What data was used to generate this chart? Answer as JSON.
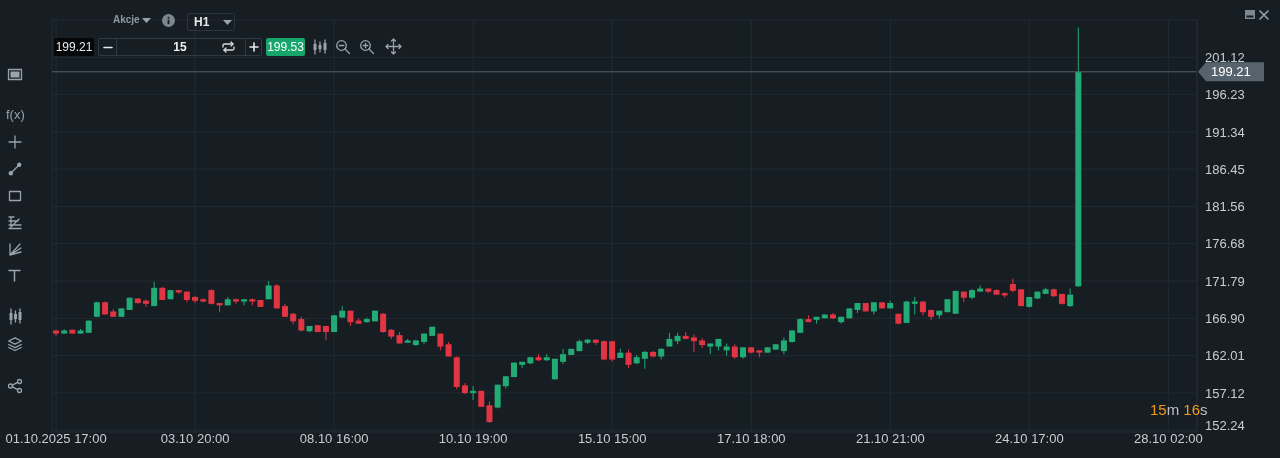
{
  "chart_data": {
    "type": "candlestick",
    "categories": [
      "01.10.2025 17:00",
      null,
      null,
      null,
      null,
      null,
      null,
      null,
      null,
      null,
      null,
      null,
      null,
      null,
      null,
      null,
      null,
      "03.10 20:00",
      null,
      null,
      null,
      null,
      null,
      null,
      null,
      null,
      null,
      null,
      null,
      null,
      null,
      null,
      null,
      null,
      "08.10 16:00",
      null,
      null,
      null,
      null,
      null,
      null,
      null,
      null,
      null,
      null,
      null,
      null,
      null,
      null,
      null,
      null,
      "10.10 19:00",
      null,
      null,
      null,
      null,
      null,
      null,
      null,
      null,
      null,
      null,
      null,
      null,
      null,
      null,
      null,
      null,
      "15.10 15:00",
      null,
      null,
      null,
      null,
      null,
      null,
      null,
      null,
      null,
      null,
      null,
      null,
      null,
      null,
      null,
      null,
      "17.10 18:00",
      null,
      null,
      null,
      null,
      null,
      null,
      null,
      null,
      null,
      null,
      null,
      null,
      null,
      null,
      null,
      null,
      "21.10 21:00",
      null,
      null,
      null,
      null,
      null,
      null,
      null,
      null,
      null,
      null,
      null,
      null,
      null,
      null,
      null,
      null,
      "24.10 17:00",
      null,
      null,
      null,
      null,
      null,
      null,
      null,
      null,
      null,
      null,
      null,
      null,
      null,
      null,
      null,
      null,
      "28.10 02:00",
      null,
      null,
      null
    ],
    "ohlc": [
      [
        165.3,
        165.4,
        164.6,
        164.9
      ],
      [
        164.9,
        165.5,
        164.9,
        165.3
      ],
      [
        165.4,
        165.4,
        164.9,
        164.9
      ],
      [
        164.9,
        165.5,
        164.9,
        165.3
      ],
      [
        165.0,
        166.6,
        165.0,
        166.6
      ],
      [
        167.1,
        169.1,
        167.1,
        169.0
      ],
      [
        169.0,
        169.1,
        167.4,
        167.4
      ],
      [
        167.8,
        168.1,
        167.1,
        167.1
      ],
      [
        167.1,
        168.2,
        167.1,
        168.2
      ],
      [
        168.0,
        169.6,
        168.0,
        169.6
      ],
      [
        169.5,
        169.5,
        168.8,
        168.9
      ],
      [
        169.2,
        169.4,
        168.4,
        168.8
      ],
      [
        168.5,
        171.7,
        168.5,
        170.9
      ],
      [
        170.9,
        171.0,
        169.3,
        169.3
      ],
      [
        169.4,
        170.6,
        169.4,
        170.6
      ],
      [
        170.6,
        170.6,
        170.1,
        170.3
      ],
      [
        170.4,
        170.4,
        169.0,
        169.3
      ],
      [
        169.7,
        169.8,
        168.9,
        169.2
      ],
      [
        169.4,
        169.5,
        169.0,
        169.1
      ],
      [
        170.6,
        170.7,
        168.7,
        168.8
      ],
      [
        168.9,
        168.9,
        167.7,
        168.6
      ],
      [
        168.6,
        169.7,
        168.6,
        169.4
      ],
      [
        169.4,
        169.5,
        168.8,
        169.1
      ],
      [
        169.1,
        169.4,
        168.6,
        169.4
      ],
      [
        169.4,
        169.5,
        168.6,
        169.1
      ],
      [
        169.3,
        169.3,
        168.4,
        168.4
      ],
      [
        169.4,
        171.8,
        169.4,
        171.2
      ],
      [
        171.2,
        171.4,
        168.2,
        168.2
      ],
      [
        168.5,
        168.8,
        167.1,
        167.1
      ],
      [
        167.5,
        167.6,
        166.1,
        166.5
      ],
      [
        166.8,
        167.1,
        165.2,
        165.3
      ],
      [
        165.2,
        165.9,
        165.1,
        165.9
      ],
      [
        166.0,
        166.0,
        165.1,
        165.1
      ],
      [
        165.9,
        165.9,
        164.0,
        165.1
      ],
      [
        165.1,
        167.3,
        165.1,
        167.3
      ],
      [
        167.0,
        168.5,
        167.0,
        167.9
      ],
      [
        167.9,
        167.9,
        165.9,
        166.4
      ],
      [
        166.6,
        166.9,
        166.2,
        166.2
      ],
      [
        166.4,
        167.0,
        166.3,
        166.8
      ],
      [
        166.5,
        167.9,
        166.5,
        167.9
      ],
      [
        167.5,
        167.6,
        165.0,
        165.1
      ],
      [
        165.4,
        165.5,
        164.2,
        164.5
      ],
      [
        164.7,
        165.1,
        163.6,
        163.6
      ],
      [
        163.7,
        164.2,
        163.7,
        164.0
      ],
      [
        163.4,
        164.1,
        163.3,
        164.0
      ],
      [
        163.8,
        164.9,
        163.5,
        164.9
      ],
      [
        164.6,
        165.8,
        164.6,
        165.8
      ],
      [
        164.9,
        164.9,
        162.7,
        163.2
      ],
      [
        163.5,
        163.8,
        161.9,
        161.9
      ],
      [
        161.8,
        161.9,
        157.6,
        157.9
      ],
      [
        158.1,
        158.4,
        157.0,
        157.1
      ],
      [
        157.1,
        158.0,
        156.2,
        157.4
      ],
      [
        157.4,
        157.4,
        155.3,
        155.3
      ],
      [
        155.5,
        156.0,
        153.2,
        153.3
      ],
      [
        155.2,
        158.2,
        155.1,
        158.2
      ],
      [
        158.0,
        159.3,
        157.7,
        159.3
      ],
      [
        159.2,
        161.1,
        159.2,
        161.1
      ],
      [
        160.8,
        161.2,
        160.4,
        161.2
      ],
      [
        161.0,
        161.8,
        160.9,
        161.8
      ],
      [
        161.8,
        162.2,
        161.3,
        161.4
      ],
      [
        161.4,
        162.2,
        161.3,
        161.8
      ],
      [
        158.9,
        161.6,
        158.9,
        161.6
      ],
      [
        161.2,
        162.9,
        160.9,
        162.2
      ],
      [
        162.1,
        162.9,
        162.1,
        162.9
      ],
      [
        162.6,
        164.1,
        162.6,
        163.9
      ],
      [
        163.7,
        164.2,
        163.5,
        164.1
      ],
      [
        164.1,
        164.1,
        163.4,
        163.7
      ],
      [
        163.9,
        164.0,
        161.4,
        161.5
      ],
      [
        163.9,
        163.9,
        161.2,
        161.5
      ],
      [
        161.7,
        162.9,
        161.7,
        162.4
      ],
      [
        162.4,
        162.8,
        160.4,
        160.8
      ],
      [
        161.0,
        162.1,
        160.9,
        161.8
      ],
      [
        161.6,
        162.6,
        160.3,
        162.5
      ],
      [
        162.5,
        162.6,
        161.8,
        161.9
      ],
      [
        161.9,
        163.0,
        161.5,
        162.9
      ],
      [
        163.2,
        165.0,
        163.2,
        164.2
      ],
      [
        163.9,
        165.0,
        163.5,
        164.6
      ],
      [
        164.6,
        165.1,
        164.1,
        164.2
      ],
      [
        164.4,
        164.8,
        162.5,
        163.9
      ],
      [
        164.0,
        164.3,
        163.0,
        163.4
      ],
      [
        163.2,
        163.6,
        162.2,
        163.6
      ],
      [
        163.2,
        164.2,
        162.7,
        164.2
      ],
      [
        162.7,
        163.6,
        162.0,
        163.2
      ],
      [
        163.2,
        163.5,
        161.6,
        161.8
      ],
      [
        161.8,
        163.1,
        161.6,
        163.1
      ],
      [
        163.1,
        163.1,
        162.3,
        162.4
      ],
      [
        162.7,
        162.7,
        161.8,
        162.4
      ],
      [
        162.4,
        163.1,
        162.4,
        163.1
      ],
      [
        162.8,
        163.5,
        162.8,
        163.5
      ],
      [
        162.6,
        164.4,
        162.2,
        164.0
      ],
      [
        163.8,
        165.4,
        163.7,
        165.3
      ],
      [
        165.0,
        166.9,
        165.0,
        166.8
      ],
      [
        166.8,
        167.3,
        166.4,
        166.4
      ],
      [
        166.7,
        167.1,
        166.2,
        167.1
      ],
      [
        166.9,
        167.4,
        166.9,
        167.4
      ],
      [
        167.4,
        167.6,
        166.8,
        166.9
      ],
      [
        166.4,
        167.1,
        166.2,
        167.1
      ],
      [
        166.9,
        168.2,
        166.9,
        168.2
      ],
      [
        168.0,
        168.9,
        167.6,
        168.9
      ],
      [
        168.9,
        168.9,
        167.8,
        167.8
      ],
      [
        167.8,
        169.0,
        167.4,
        169.0
      ],
      [
        169.0,
        169.0,
        168.2,
        168.2
      ],
      [
        168.2,
        169.2,
        168.2,
        168.9
      ],
      [
        167.5,
        167.5,
        166.1,
        166.2
      ],
      [
        166.3,
        169.2,
        166.3,
        169.1
      ],
      [
        168.8,
        169.7,
        167.4,
        169.1
      ],
      [
        169.1,
        169.1,
        167.3,
        167.7
      ],
      [
        168.0,
        168.0,
        166.7,
        167.1
      ],
      [
        167.3,
        167.9,
        166.9,
        167.9
      ],
      [
        167.7,
        169.4,
        167.7,
        169.4
      ],
      [
        167.5,
        170.5,
        167.5,
        170.5
      ],
      [
        170.4,
        170.4,
        169.0,
        169.6
      ],
      [
        169.6,
        170.7,
        169.4,
        170.6
      ],
      [
        170.4,
        171.2,
        170.4,
        170.8
      ],
      [
        170.8,
        170.8,
        170.2,
        170.4
      ],
      [
        170.6,
        170.7,
        170.0,
        170.0
      ],
      [
        170.2,
        170.3,
        169.6,
        169.9
      ],
      [
        171.4,
        172.1,
        170.3,
        170.5
      ],
      [
        170.7,
        170.7,
        168.5,
        168.5
      ],
      [
        168.4,
        169.7,
        168.3,
        169.7
      ],
      [
        169.5,
        170.4,
        169.4,
        170.4
      ],
      [
        170.1,
        170.9,
        170.1,
        170.7
      ],
      [
        170.7,
        170.8,
        169.7,
        169.8
      ],
      [
        170.1,
        170.1,
        168.7,
        168.8
      ],
      [
        168.5,
        170.8,
        168.4,
        170.0
      ],
      [
        171.1,
        205.0,
        171.0,
        199.21
      ],
      null,
      null,
      null,
      null,
      null,
      null,
      null,
      null,
      null,
      null,
      null,
      null,
      null,
      null
    ],
    "colors": [
      "#e23543",
      "#22ab74",
      "#e23543",
      "#22ab74",
      "#22ab74",
      "#22ab74",
      "#e23543",
      "#e23543",
      "#22ab74",
      "#22ab74",
      "#e23543",
      "#e23543",
      "#22ab74",
      "#e23543",
      "#22ab74",
      "#e23543",
      "#e23543",
      "#e23543",
      "#e23543",
      "#e23543",
      "#e23543",
      "#22ab74",
      "#e23543",
      "#22ab74",
      "#e23543",
      "#e23543",
      "#22ab74",
      "#e23543",
      "#e23543",
      "#e23543",
      "#e23543",
      "#22ab74",
      "#e23543",
      "#e23543",
      "#22ab74",
      "#22ab74",
      "#e23543",
      "#e23543",
      "#22ab74",
      "#22ab74",
      "#e23543",
      "#e23543",
      "#e23543",
      "#22ab74",
      "#22ab74",
      "#22ab74",
      "#22ab74",
      "#e23543",
      "#e23543",
      "#e23543",
      "#e23543",
      "#22ab74",
      "#e23543",
      "#e23543",
      "#22ab74",
      "#22ab74",
      "#22ab74",
      "#22ab74",
      "#22ab74",
      "#e23543",
      "#22ab74",
      "#22ab74",
      "#22ab74",
      "#22ab74",
      "#22ab74",
      "#22ab74",
      "#e23543",
      "#e23543",
      "#e23543",
      "#22ab74",
      "#e23543",
      "#22ab74",
      "#22ab74",
      "#e23543",
      "#22ab74",
      "#22ab74",
      "#22ab74",
      "#e23543",
      "#e23543",
      "#e23543",
      "#22ab74",
      "#22ab74",
      "#22ab74",
      "#e23543",
      "#22ab74",
      "#e23543",
      "#e23543",
      "#22ab74",
      "#22ab74",
      "#22ab74",
      "#22ab74",
      "#22ab74",
      "#e23543",
      "#22ab74",
      "#22ab74",
      "#e23543",
      "#22ab74",
      "#22ab74",
      "#22ab74",
      "#e23543",
      "#22ab74",
      "#e23543",
      "#22ab74",
      "#e23543",
      "#22ab74",
      "#22ab74",
      "#e23543",
      "#e23543",
      "#22ab74",
      "#22ab74",
      "#22ab74",
      "#e23543",
      "#22ab74",
      "#22ab74",
      "#e23543",
      "#e23543",
      "#e23543",
      "#e23543",
      "#e23543",
      "#22ab74",
      "#22ab74",
      "#22ab74",
      "#e23543",
      "#e23543",
      "#22ab74",
      "#22ab74",
      null,
      null,
      null,
      null,
      null,
      null,
      null,
      null,
      null,
      null,
      null,
      null,
      null,
      null
    ],
    "ylim": [
      152,
      206
    ],
    "yticks": [
      152.24,
      157.12,
      162.01,
      {
        "value": 166.9,
        "label": "166.90"
      },
      171.79,
      176.68,
      181.56,
      186.45,
      191.34,
      196.23,
      201.12
    ],
    "grid": true,
    "ref_lines": [
      {
        "axis": "y",
        "value": 199.21,
        "label": "199.21",
        "color": "#56636d"
      }
    ],
    "annotations": [
      "Akcje",
      "H1",
      "199.21",
      "15",
      "199.53",
      "f(x)",
      "15m 16s"
    ]
  }
}
